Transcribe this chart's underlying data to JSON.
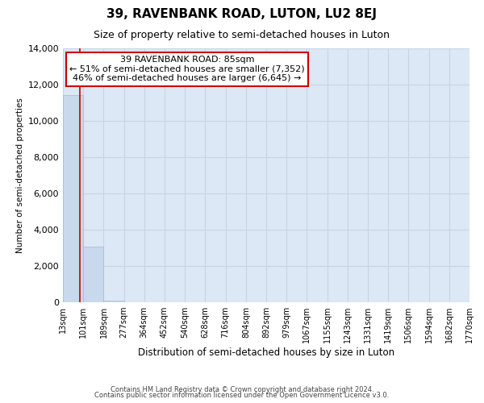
{
  "title": "39, RAVENBANK ROAD, LUTON, LU2 8EJ",
  "subtitle": "Size of property relative to semi-detached houses in Luton",
  "xlabel": "Distribution of semi-detached houses by size in Luton",
  "ylabel": "Number of semi-detached properties",
  "bin_edges": [
    13,
    101,
    189,
    277,
    364,
    452,
    540,
    628,
    716,
    804,
    892,
    979,
    1067,
    1155,
    1243,
    1331,
    1419,
    1506,
    1594,
    1682,
    1770
  ],
  "bar_heights": [
    11400,
    3050,
    100,
    0,
    0,
    0,
    0,
    0,
    0,
    0,
    0,
    0,
    0,
    0,
    0,
    0,
    0,
    0,
    0,
    0
  ],
  "bar_color": "#c8d9ed",
  "bar_edgecolor": "#a0b8d8",
  "property_size": 85,
  "property_line_color": "#cc0000",
  "annotation_line1": "39 RAVENBANK ROAD: 85sqm",
  "annotation_line2": "← 51% of semi-detached houses are smaller (7,352)",
  "annotation_line3": "46% of semi-detached houses are larger (6,645) →",
  "annotation_box_color": "#ffffff",
  "annotation_box_edgecolor": "#cc0000",
  "ylim": [
    0,
    14000
  ],
  "yticks": [
    0,
    2000,
    4000,
    6000,
    8000,
    10000,
    12000,
    14000
  ],
  "footer_line1": "Contains HM Land Registry data © Crown copyright and database right 2024.",
  "footer_line2": "Contains public sector information licensed under the Open Government Licence v3.0.",
  "background_color": "#ffffff",
  "plot_bg_color": "#dce8f5",
  "grid_color": "#c5d5e5",
  "title_fontsize": 11,
  "subtitle_fontsize": 9,
  "annotation_fontsize": 8
}
